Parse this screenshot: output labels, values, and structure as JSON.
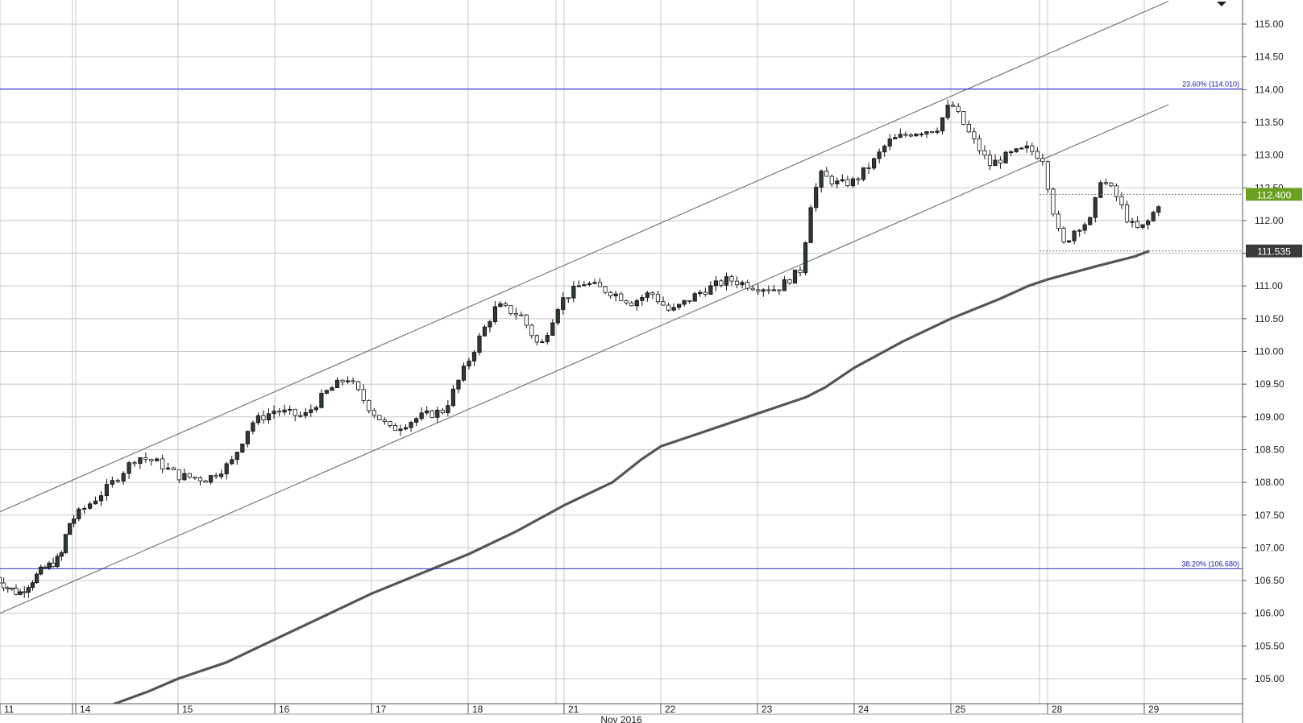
{
  "chart_data": {
    "type": "candlestick",
    "instrument_price_axis": {
      "ticks": [
        "105.00",
        "105.50",
        "106.00",
        "106.50",
        "107.00",
        "107.50",
        "108.00",
        "108.50",
        "109.00",
        "109.50",
        "110.00",
        "110.50",
        "111.00",
        "111.50",
        "112.00",
        "112.50",
        "113.00",
        "113.50",
        "114.00",
        "114.50",
        "115.00"
      ],
      "ylim": [
        104.6,
        115.2
      ]
    },
    "date_axis": {
      "day_labels": [
        "11",
        "14",
        "15",
        "16",
        "17",
        "18",
        "21",
        "22",
        "23",
        "24",
        "25",
        "28",
        "29"
      ],
      "month_label": "Nov 2016"
    },
    "grid": true,
    "current_price": {
      "label": "112.400",
      "value": 112.4,
      "color": "#6aa121"
    },
    "moving_average_last": {
      "label": "111.535",
      "value": 111.535,
      "color": "#3a3a3a"
    },
    "fibonacci_levels": [
      {
        "label": "23.60% (114.010)",
        "value": 114.01,
        "color": "#2f2fd6"
      },
      {
        "label": "38.20% (106.680)",
        "value": 106.68,
        "color": "#2f2fd6"
      }
    ],
    "channel": {
      "upper": {
        "start": {
          "day_index": 0.0,
          "price": 107.55
        },
        "end": {
          "day_index": 12.25,
          "price": 115.35
        }
      },
      "lower": {
        "start": {
          "day_index": 0.0,
          "price": 106.0
        },
        "end": {
          "day_index": 12.25,
          "price": 113.77
        }
      }
    },
    "moving_average": [
      {
        "d": 1.35,
        "p": 104.6
      },
      {
        "d": 1.7,
        "p": 104.8
      },
      {
        "d": 2.0,
        "p": 105.0
      },
      {
        "d": 2.5,
        "p": 105.25
      },
      {
        "d": 3.0,
        "p": 105.6
      },
      {
        "d": 3.5,
        "p": 105.95
      },
      {
        "d": 4.0,
        "p": 106.3
      },
      {
        "d": 4.5,
        "p": 106.6
      },
      {
        "d": 5.0,
        "p": 106.9
      },
      {
        "d": 5.5,
        "p": 107.25
      },
      {
        "d": 6.0,
        "p": 107.65
      },
      {
        "d": 6.5,
        "p": 108.0
      },
      {
        "d": 6.8,
        "p": 108.35
      },
      {
        "d": 7.0,
        "p": 108.55
      },
      {
        "d": 7.5,
        "p": 108.8
      },
      {
        "d": 8.0,
        "p": 109.05
      },
      {
        "d": 8.5,
        "p": 109.3
      },
      {
        "d": 8.7,
        "p": 109.45
      },
      {
        "d": 9.0,
        "p": 109.75
      },
      {
        "d": 9.5,
        "p": 110.15
      },
      {
        "d": 10.0,
        "p": 110.5
      },
      {
        "d": 10.5,
        "p": 110.8
      },
      {
        "d": 10.8,
        "p": 111.0
      },
      {
        "d": 11.0,
        "p": 111.1
      },
      {
        "d": 11.5,
        "p": 111.3
      },
      {
        "d": 11.9,
        "p": 111.45
      },
      {
        "d": 12.05,
        "p": 111.535
      }
    ],
    "price_path": [
      {
        "d": -0.06,
        "p": 106.55
      },
      {
        "d": 0.1,
        "p": 106.4
      },
      {
        "d": 0.25,
        "p": 106.3
      },
      {
        "d": 0.55,
        "p": 106.65
      },
      {
        "d": 0.8,
        "p": 106.85
      },
      {
        "d": 0.9,
        "p": 107.35
      },
      {
        "d": 1.3,
        "p": 107.9
      },
      {
        "d": 1.6,
        "p": 108.4
      },
      {
        "d": 1.8,
        "p": 108.3
      },
      {
        "d": 2.0,
        "p": 108.1
      },
      {
        "d": 2.3,
        "p": 108.05
      },
      {
        "d": 2.55,
        "p": 108.3
      },
      {
        "d": 2.75,
        "p": 108.9
      },
      {
        "d": 3.0,
        "p": 109.1
      },
      {
        "d": 3.3,
        "p": 109.0
      },
      {
        "d": 3.55,
        "p": 109.4
      },
      {
        "d": 3.75,
        "p": 109.6
      },
      {
        "d": 4.0,
        "p": 109.1
      },
      {
        "d": 4.2,
        "p": 108.8
      },
      {
        "d": 4.5,
        "p": 109.0
      },
      {
        "d": 4.75,
        "p": 109.1
      },
      {
        "d": 5.0,
        "p": 109.85
      },
      {
        "d": 5.15,
        "p": 110.3
      },
      {
        "d": 5.3,
        "p": 110.7
      },
      {
        "d": 5.55,
        "p": 110.55
      },
      {
        "d": 5.75,
        "p": 110.05
      },
      {
        "d": 5.95,
        "p": 110.75
      },
      {
        "d": 6.2,
        "p": 111.05
      },
      {
        "d": 6.5,
        "p": 110.9
      },
      {
        "d": 6.7,
        "p": 110.75
      },
      {
        "d": 6.9,
        "p": 110.9
      },
      {
        "d": 7.1,
        "p": 110.6
      },
      {
        "d": 7.4,
        "p": 110.9
      },
      {
        "d": 7.7,
        "p": 111.1
      },
      {
        "d": 7.95,
        "p": 111.0
      },
      {
        "d": 8.2,
        "p": 110.95
      },
      {
        "d": 8.45,
        "p": 111.25
      },
      {
        "d": 8.55,
        "p": 112.25
      },
      {
        "d": 8.65,
        "p": 112.7
      },
      {
        "d": 8.85,
        "p": 112.55
      },
      {
        "d": 9.0,
        "p": 112.6
      },
      {
        "d": 9.2,
        "p": 112.9
      },
      {
        "d": 9.35,
        "p": 113.2
      },
      {
        "d": 9.6,
        "p": 113.35
      },
      {
        "d": 9.85,
        "p": 113.4
      },
      {
        "d": 10.0,
        "p": 113.8
      },
      {
        "d": 10.2,
        "p": 113.3
      },
      {
        "d": 10.4,
        "p": 112.85
      },
      {
        "d": 10.6,
        "p": 113.0
      },
      {
        "d": 10.8,
        "p": 113.1
      },
      {
        "d": 10.95,
        "p": 112.95
      },
      {
        "d": 11.05,
        "p": 112.2
      },
      {
        "d": 11.15,
        "p": 111.6
      },
      {
        "d": 11.3,
        "p": 111.9
      },
      {
        "d": 11.45,
        "p": 112.0
      },
      {
        "d": 11.55,
        "p": 112.65
      },
      {
        "d": 11.7,
        "p": 112.4
      },
      {
        "d": 11.85,
        "p": 111.95
      },
      {
        "d": 11.95,
        "p": 111.85
      },
      {
        "d": 12.05,
        "p": 112.0
      },
      {
        "d": 12.2,
        "p": 112.4
      }
    ]
  }
}
